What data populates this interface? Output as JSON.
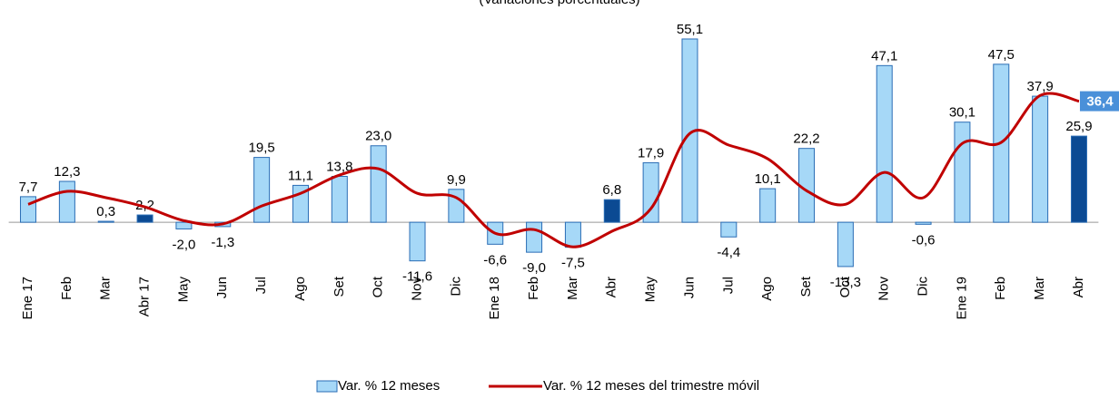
{
  "chart_data": {
    "type": "bar_line",
    "subtitle": "(Variaciones porcentuales)",
    "categories": [
      "Ene 17",
      "Feb",
      "Mar",
      "Abr 17",
      "May",
      "Jun",
      "Jul",
      "Ago",
      "Set",
      "Oct",
      "Nov",
      "Dic",
      "Ene 18",
      "Feb",
      "Mar",
      "Abr",
      "May",
      "Jun",
      "Jul",
      "Ago",
      "Set",
      "Oct",
      "Nov",
      "Dic",
      "Ene 19",
      "Feb",
      "Mar",
      "Abr"
    ],
    "ylim": [
      -20,
      60
    ],
    "series": [
      {
        "name": "Var. % 12 meses",
        "type": "bar",
        "color": "#a6d8f7",
        "edge_color": "#2a6db5",
        "highlight_color": "#0b4a93",
        "highlight": [
          3,
          15,
          27
        ],
        "values": [
          7.7,
          12.3,
          0.3,
          2.2,
          -2.0,
          -1.3,
          19.5,
          11.1,
          13.8,
          23.0,
          -11.6,
          9.9,
          -6.6,
          -9.0,
          -7.5,
          6.8,
          17.9,
          55.1,
          -4.4,
          10.1,
          22.2,
          -13.3,
          47.1,
          -0.6,
          30.1,
          47.5,
          37.9,
          25.9
        ],
        "value_labels": [
          "7,7",
          "12,3",
          "0,3",
          "2,2",
          "-2,0",
          "-1,3",
          "19,5",
          "11,1",
          "13,8",
          "23,0",
          "-11,6",
          "9,9",
          "-6,6",
          "-9,0",
          "-7,5",
          "6,8",
          "17,9",
          "55,1",
          "-4,4",
          "10,1",
          "22,2",
          "-13,3",
          "47,1",
          "-0,6",
          "30,1",
          "47,5",
          "37,9",
          "25,9"
        ]
      },
      {
        "name": "Var. % 12 meses del trimestre móvil",
        "type": "line",
        "color": "#c00000",
        "values": [
          5.4,
          9.3,
          7.4,
          4.6,
          0.5,
          -0.5,
          4.9,
          8.7,
          14.2,
          16.1,
          8.7,
          7.4,
          -3.3,
          -2.2,
          -7.4,
          -2.7,
          4.1,
          26.7,
          23.2,
          19.1,
          9.5,
          5.4,
          15.0,
          7.4,
          23.7,
          24.0,
          38.1,
          36.4
        ],
        "value_labels": [
          null,
          null,
          null,
          null,
          null,
          null,
          null,
          null,
          null,
          null,
          null,
          null,
          null,
          null,
          null,
          null,
          null,
          null,
          null,
          null,
          null,
          null,
          null,
          null,
          null,
          null,
          null,
          "36,4"
        ]
      }
    ]
  }
}
